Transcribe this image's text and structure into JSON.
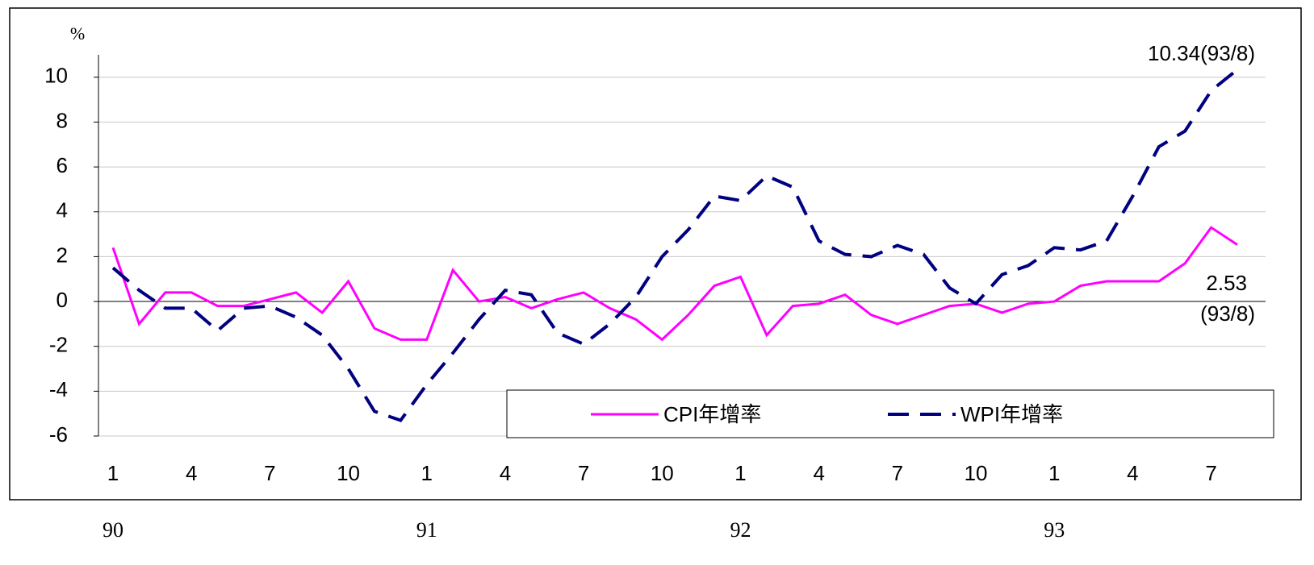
{
  "chart_data": {
    "type": "line",
    "y_unit_label": "%",
    "categories": [
      "1",
      null,
      null,
      "4",
      null,
      null,
      "7",
      null,
      null,
      "10",
      null,
      null,
      "1",
      null,
      null,
      "4",
      null,
      null,
      "7",
      null,
      null,
      "10",
      null,
      null,
      "1",
      null,
      null,
      "4",
      null,
      null,
      "7",
      null,
      null,
      "10",
      null,
      null,
      "1",
      null,
      null,
      "4",
      null,
      null,
      "7",
      null
    ],
    "year_labels": [
      "90",
      "91",
      "92",
      "93"
    ],
    "series": [
      {
        "name": "CPI年增率",
        "color": "#ff00ff",
        "dash": false,
        "values": [
          2.4,
          -1.0,
          0.4,
          0.4,
          -0.2,
          -0.2,
          0.1,
          0.4,
          -0.5,
          0.9,
          -1.2,
          -1.7,
          -1.7,
          1.4,
          0,
          0.2,
          -0.3,
          0.1,
          0.4,
          -0.3,
          -0.8,
          -1.7,
          -0.6,
          0.7,
          1.1,
          -1.5,
          -0.2,
          -0.1,
          0.3,
          -0.6,
          -1.0,
          -0.6,
          -0.2,
          -0.1,
          -0.5,
          -0.1,
          0,
          0.7,
          0.9,
          0.9,
          0.9,
          1.7,
          3.3,
          2.53
        ]
      },
      {
        "name": "WPI年增率",
        "color": "#000080",
        "dash": true,
        "values": [
          1.5,
          0.5,
          -0.3,
          -0.3,
          -1.3,
          -0.3,
          -0.2,
          -0.7,
          -1.5,
          -3.0,
          -4.9,
          -5.3,
          -3.7,
          -2.3,
          -0.8,
          0.5,
          0.3,
          -1.4,
          -1.9,
          -1.0,
          0.2,
          2.0,
          3.2,
          4.7,
          4.5,
          5.6,
          5.1,
          2.7,
          2.1,
          2.0,
          2.5,
          2.1,
          0.6,
          -0.1,
          1.2,
          1.6,
          2.4,
          2.3,
          2.7,
          4.7,
          6.9,
          7.6,
          9.4,
          10.34
        ]
      }
    ],
    "annotations": [
      "10.34(93/8)",
      "2.53",
      "(93/8)"
    ],
    "ylim": [
      -6,
      11
    ],
    "yticks": [
      -6,
      -4,
      -2,
      0,
      2,
      4,
      6,
      8,
      10
    ],
    "grid": true
  }
}
